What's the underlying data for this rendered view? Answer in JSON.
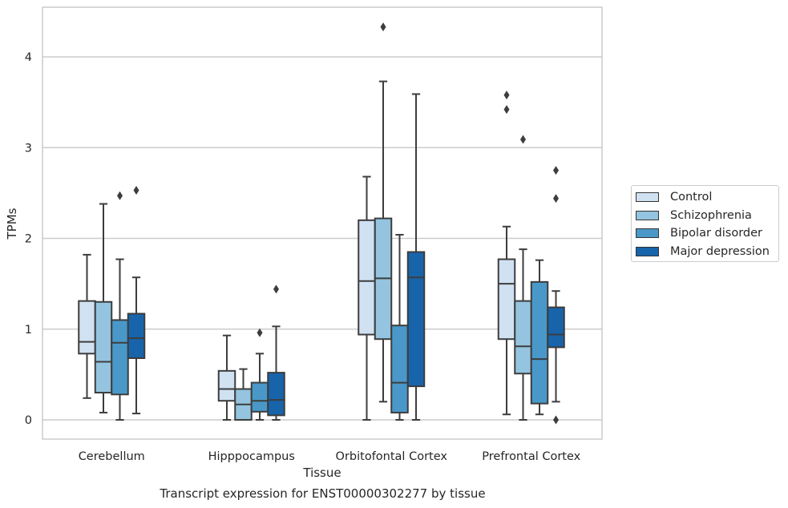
{
  "caption": "Transcript expression for ENST00000302277 by tissue",
  "chart_data": {
    "type": "box",
    "xlabel": "Tissue",
    "ylabel": "TPMs",
    "ylim": [
      -0.2,
      4.55
    ],
    "yticks": [
      0,
      1,
      2,
      3,
      4
    ],
    "grid": "horizontal",
    "legend_position": "right",
    "categories": [
      "Cerebellum",
      "Hipppocampus",
      "Orbitofontal Cortex",
      "Prefrontal Cortex"
    ],
    "series": [
      {
        "name": "Control",
        "color": "#d0e1f2",
        "boxes": [
          {
            "whislo": 0.24,
            "q1": 0.73,
            "med": 0.86,
            "q3": 1.31,
            "whishi": 1.82,
            "fliers": []
          },
          {
            "whislo": 0.0,
            "q1": 0.21,
            "med": 0.34,
            "q3": 0.54,
            "whishi": 0.93,
            "fliers": []
          },
          {
            "whislo": 0.0,
            "q1": 0.94,
            "med": 1.53,
            "q3": 2.2,
            "whishi": 2.68,
            "fliers": []
          },
          {
            "whislo": 0.06,
            "q1": 0.89,
            "med": 1.5,
            "q3": 1.77,
            "whishi": 2.13,
            "fliers": [
              3.42,
              3.58
            ]
          }
        ]
      },
      {
        "name": "Schizophrenia",
        "color": "#94c4df",
        "boxes": [
          {
            "whislo": 0.08,
            "q1": 0.3,
            "med": 0.64,
            "q3": 1.3,
            "whishi": 2.38,
            "fliers": []
          },
          {
            "whislo": 0.0,
            "q1": 0.0,
            "med": 0.17,
            "q3": 0.34,
            "whishi": 0.56,
            "fliers": []
          },
          {
            "whislo": 0.2,
            "q1": 0.89,
            "med": 1.56,
            "q3": 2.22,
            "whishi": 3.73,
            "fliers": [
              4.33
            ]
          },
          {
            "whislo": 0.0,
            "q1": 0.51,
            "med": 0.81,
            "q3": 1.31,
            "whishi": 1.88,
            "fliers": [
              3.09
            ]
          }
        ]
      },
      {
        "name": "Bipolar disorder",
        "color": "#4a98c9",
        "boxes": [
          {
            "whislo": 0.0,
            "q1": 0.28,
            "med": 0.85,
            "q3": 1.1,
            "whishi": 1.77,
            "fliers": [
              2.47
            ]
          },
          {
            "whislo": 0.0,
            "q1": 0.09,
            "med": 0.21,
            "q3": 0.41,
            "whishi": 0.73,
            "fliers": [
              0.96
            ]
          },
          {
            "whislo": 0.0,
            "q1": 0.08,
            "med": 0.41,
            "q3": 1.04,
            "whishi": 2.04,
            "fliers": []
          },
          {
            "whislo": 0.06,
            "q1": 0.18,
            "med": 0.67,
            "q3": 1.52,
            "whishi": 1.76,
            "fliers": []
          }
        ]
      },
      {
        "name": "Major depression",
        "color": "#1764ab",
        "boxes": [
          {
            "whislo": 0.07,
            "q1": 0.68,
            "med": 0.9,
            "q3": 1.17,
            "whishi": 1.57,
            "fliers": [
              2.53
            ]
          },
          {
            "whislo": 0.0,
            "q1": 0.05,
            "med": 0.22,
            "q3": 0.52,
            "whishi": 1.03,
            "fliers": [
              1.44
            ]
          },
          {
            "whislo": 0.0,
            "q1": 0.37,
            "med": 1.57,
            "q3": 1.85,
            "whishi": 3.59,
            "fliers": []
          },
          {
            "whislo": 0.2,
            "q1": 0.8,
            "med": 0.94,
            "q3": 1.24,
            "whishi": 1.42,
            "fliers": [
              0.0,
              2.44,
              2.75
            ]
          }
        ]
      }
    ]
  }
}
